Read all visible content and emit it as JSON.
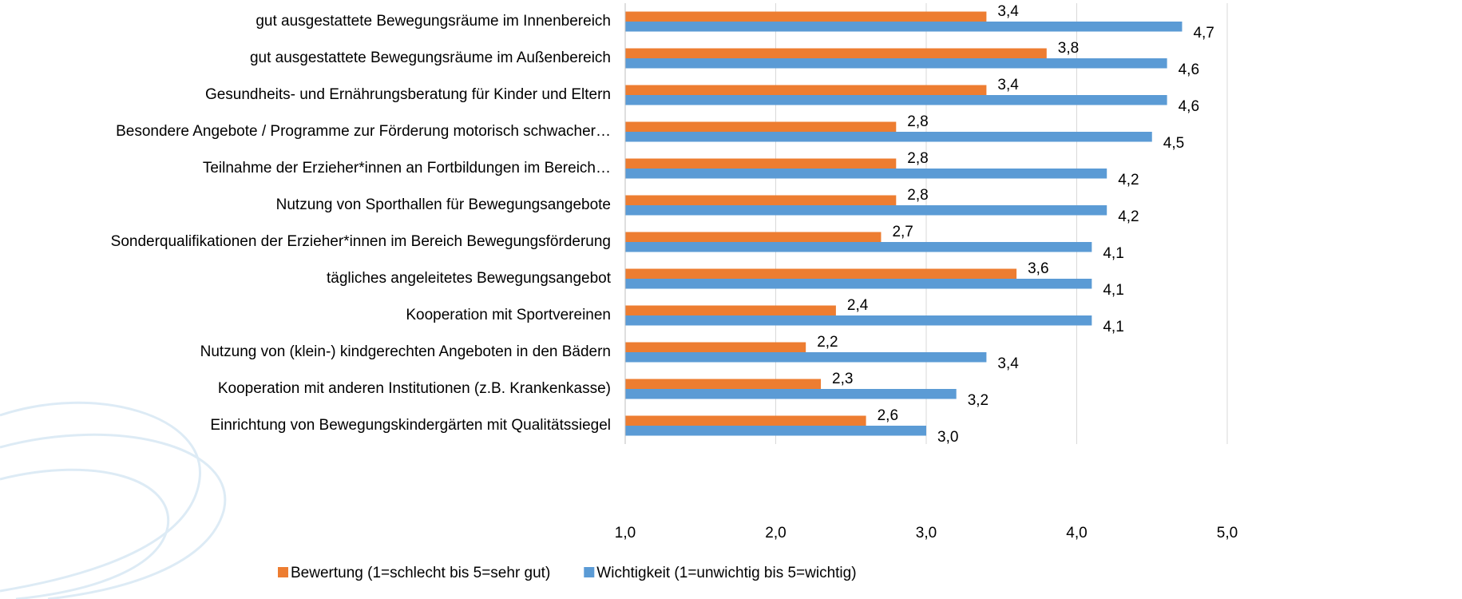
{
  "chart_data": {
    "type": "bar",
    "orientation": "horizontal",
    "categories": [
      "gut ausgestattete Bewegungsräume im Innenbereich",
      "gut ausgestattete Bewegungsräume im Außenbereich",
      "Gesundheits- und Ernährungsberatung für Kinder und Eltern",
      "Besondere Angebote / Programme zur Förderung motorisch schwacher…",
      "Teilnahme der Erzieher*innen an Fortbildungen im Bereich…",
      "Nutzung von Sporthallen für Bewegungsangebote",
      "Sonderqualifikationen der Erzieher*innen im Bereich Bewegungsförderung",
      "tägliches angeleitetes Bewegungsangebot",
      "Kooperation mit Sportvereinen",
      "Nutzung von (klein-) kindgerechten Angeboten in den Bädern",
      "Kooperation mit anderen Institutionen (z.B. Krankenkasse)",
      "Einrichtung von Bewegungskindergärten mit Qualitätssiegel"
    ],
    "series": [
      {
        "name": "Bewertung (1=schlecht bis 5=sehr gut)",
        "color": "#ed7d31",
        "values": [
          3.4,
          3.8,
          3.4,
          2.8,
          2.8,
          2.8,
          2.7,
          3.6,
          2.4,
          2.2,
          2.3,
          2.6
        ],
        "value_labels": [
          "3,4",
          "3,8",
          "3,4",
          "2,8",
          "2,8",
          "2,8",
          "2,7",
          "3,6",
          "2,4",
          "2,2",
          "2,3",
          "2,6"
        ]
      },
      {
        "name": "Wichtigkeit (1=unwichtig bis 5=wichtig)",
        "color": "#5b9bd5",
        "values": [
          4.7,
          4.6,
          4.6,
          4.5,
          4.2,
          4.2,
          4.1,
          4.1,
          4.1,
          3.4,
          3.2,
          3.0
        ],
        "value_labels": [
          "4,7",
          "4,6",
          "4,6",
          "4,5",
          "4,2",
          "4,2",
          "4,1",
          "4,1",
          "4,1",
          "3,4",
          "3,2",
          "3,0"
        ]
      }
    ],
    "xlim": [
      1,
      5
    ],
    "xticks": [
      {
        "value": 1,
        "label": "1,0"
      },
      {
        "value": 2,
        "label": "2,0"
      },
      {
        "value": 3,
        "label": "3,0"
      },
      {
        "value": 4,
        "label": "4,0"
      },
      {
        "value": 5,
        "label": "5,0"
      }
    ],
    "grid": true,
    "legend": "bottom"
  }
}
